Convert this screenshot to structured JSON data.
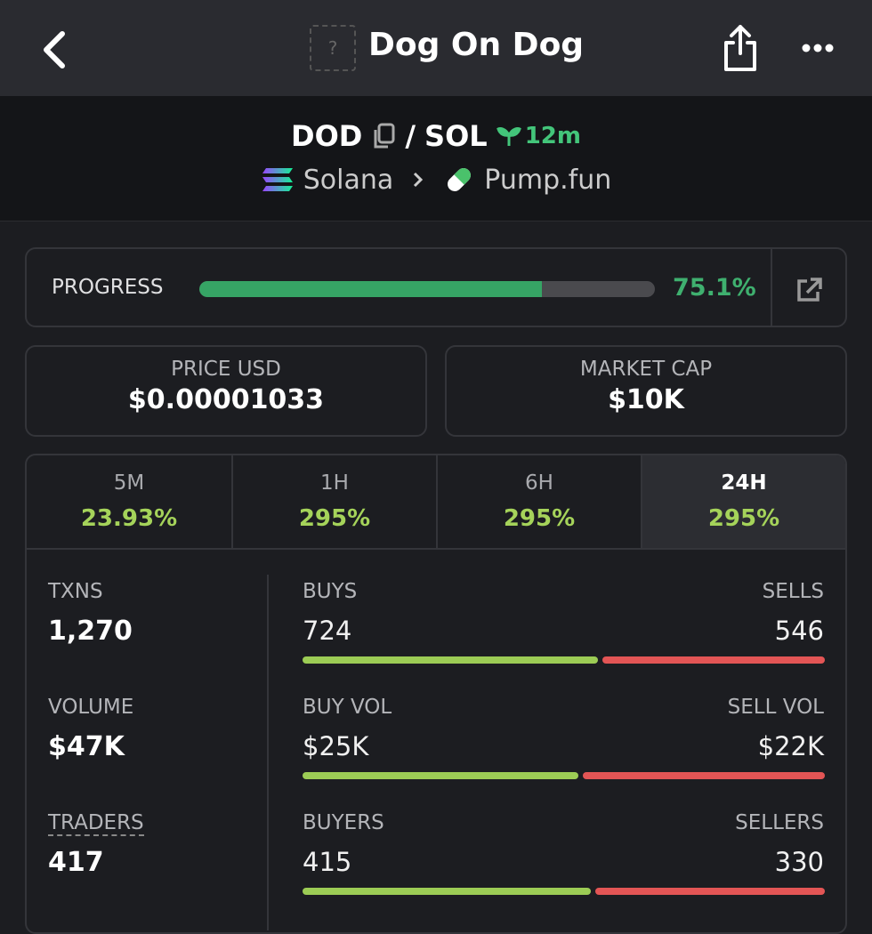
{
  "header": {
    "title": "Dog On Dog",
    "icon_placeholder": "?"
  },
  "pair": {
    "base": "DOD",
    "separator": "/",
    "quote": "SOL",
    "age": "12m",
    "chain": "Solana",
    "dex": "Pump.fun"
  },
  "progress": {
    "label": "PROGRESS",
    "value": 75.1,
    "value_label": "75.1%"
  },
  "price": {
    "label": "PRICE USD",
    "value": "$0.00001033"
  },
  "market_cap": {
    "label": "MARKET CAP",
    "value": "$10K"
  },
  "tabs": [
    {
      "label": "5M",
      "change": "23.93%",
      "selected": false
    },
    {
      "label": "1H",
      "change": "295%",
      "selected": false
    },
    {
      "label": "6H",
      "change": "295%",
      "selected": false
    },
    {
      "label": "24H",
      "change": "295%",
      "selected": true
    }
  ],
  "stats": [
    {
      "label": "TXNS",
      "value": "1,270",
      "left_label": "BUYS",
      "left_value": 724,
      "right_label": "SELLS",
      "right_value": 546
    },
    {
      "label": "VOLUME",
      "value": "$47K",
      "left_label": "BUY VOL",
      "left_value": {
        "value": 25000,
        "label": "$25K"
      },
      "right_label": "SELL VOL",
      "right_value": {
        "value": 22000,
        "label": "$22K"
      }
    },
    {
      "label": "TRADERS",
      "value": "417",
      "left_label": "BUYERS",
      "left_value": 415,
      "right_label": "SELLERS",
      "right_value": 330
    }
  ]
}
